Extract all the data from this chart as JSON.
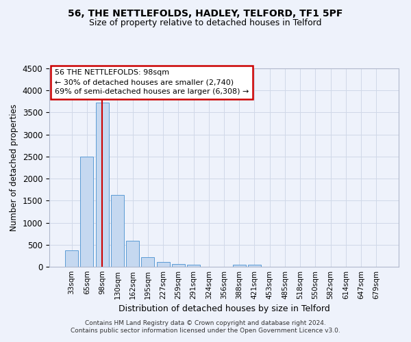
{
  "title": "56, THE NETTLEFOLDS, HADLEY, TELFORD, TF1 5PF",
  "subtitle": "Size of property relative to detached houses in Telford",
  "xlabel": "Distribution of detached houses by size in Telford",
  "ylabel": "Number of detached properties",
  "bar_labels": [
    "33sqm",
    "65sqm",
    "98sqm",
    "130sqm",
    "162sqm",
    "195sqm",
    "227sqm",
    "259sqm",
    "291sqm",
    "324sqm",
    "356sqm",
    "388sqm",
    "421sqm",
    "453sqm",
    "485sqm",
    "518sqm",
    "550sqm",
    "582sqm",
    "614sqm",
    "647sqm",
    "679sqm"
  ],
  "bar_values": [
    370,
    2500,
    3720,
    1630,
    590,
    225,
    105,
    60,
    40,
    0,
    0,
    50,
    45,
    0,
    0,
    0,
    0,
    0,
    0,
    0,
    0
  ],
  "bar_color": "#c5d8f0",
  "bar_edge_color": "#5b9bd5",
  "highlight_bar_index": 2,
  "annotation_title": "56 THE NETTLEFOLDS: 98sqm",
  "annotation_line1": "← 30% of detached houses are smaller (2,740)",
  "annotation_line2": "69% of semi-detached houses are larger (6,308) →",
  "annotation_box_facecolor": "#ffffff",
  "annotation_box_edgecolor": "#cc0000",
  "vline_color": "#cc0000",
  "grid_color": "#d0d8e8",
  "ylim": [
    0,
    4500
  ],
  "yticks": [
    0,
    500,
    1000,
    1500,
    2000,
    2500,
    3000,
    3500,
    4000,
    4500
  ],
  "footer_line1": "Contains HM Land Registry data © Crown copyright and database right 2024.",
  "footer_line2": "Contains public sector information licensed under the Open Government Licence v3.0.",
  "background_color": "#eef2fb"
}
